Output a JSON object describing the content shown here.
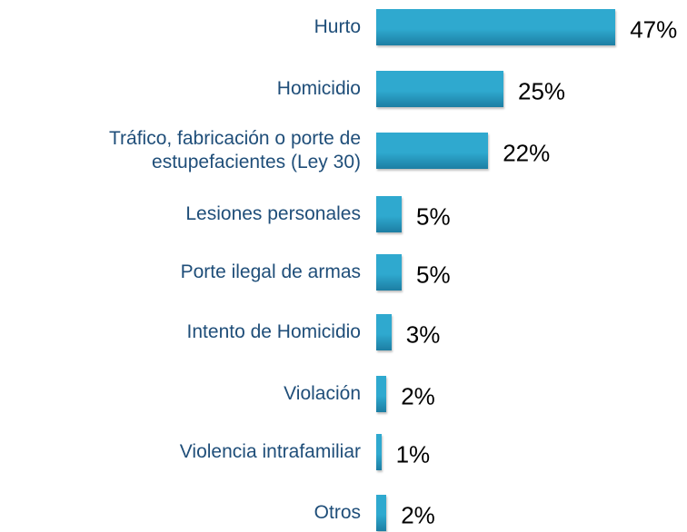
{
  "chart_data": {
    "type": "bar",
    "orientation": "horizontal",
    "categories": [
      "Hurto",
      "Homicidio",
      "Tráfico, fabricación o porte de estupefacientes (Ley 30)",
      "Lesiones personales",
      "Porte ilegal de armas",
      "Intento de Homicidio",
      "Violación",
      "Violencia intrafamiliar",
      "Otros"
    ],
    "values": [
      47,
      25,
      22,
      5,
      5,
      3,
      2,
      1,
      2
    ],
    "value_labels": [
      "47%",
      "25%",
      "22%",
      "5%",
      "5%",
      "3%",
      "2%",
      "1%",
      "2%"
    ],
    "color": "#2fa9cf"
  }
}
